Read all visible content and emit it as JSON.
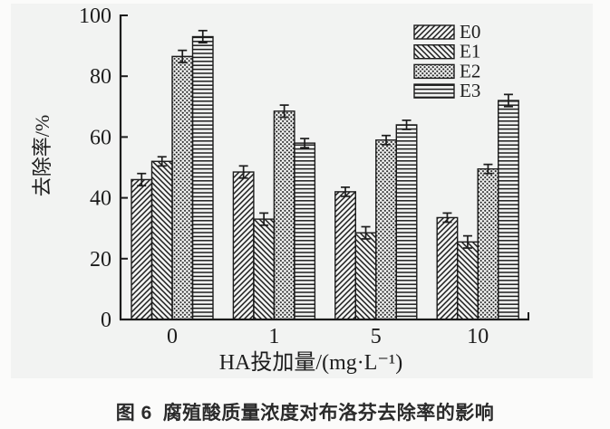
{
  "figure": {
    "caption_prefix": "图 6",
    "caption_text": "腐殖酸质量浓度对布洛芬去除率的影响"
  },
  "chart_data": {
    "type": "bar",
    "title": "",
    "xlabel": "HA投加量/(mg·L⁻¹)",
    "ylabel": "去除率/%",
    "categories": [
      "0",
      "1",
      "5",
      "10"
    ],
    "ylim": [
      0,
      100
    ],
    "yticks": [
      0,
      20,
      40,
      60,
      80,
      100
    ],
    "grid": false,
    "legend_position": "top-right-inside",
    "error_bars": true,
    "ink_color": "#1c1c1c",
    "panel_color": "#f2f3f2",
    "series": [
      {
        "name": "E0",
        "pattern": "diagonal-forward-hatch",
        "values": [
          46,
          48.5,
          42,
          33.5
        ],
        "errors": [
          2,
          2,
          1.5,
          1.5
        ]
      },
      {
        "name": "E1",
        "pattern": "diagonal-back-hatch",
        "values": [
          52,
          33,
          28.5,
          25.5
        ],
        "errors": [
          1.5,
          2,
          2,
          2
        ]
      },
      {
        "name": "E2",
        "pattern": "dense-dots",
        "values": [
          86.5,
          68.5,
          59,
          49.5
        ],
        "errors": [
          2,
          2,
          1.5,
          1.5
        ]
      },
      {
        "name": "E3",
        "pattern": "horizontal-lines",
        "values": [
          93,
          58,
          64,
          72
        ],
        "errors": [
          2,
          1.5,
          1.5,
          2
        ]
      }
    ]
  }
}
